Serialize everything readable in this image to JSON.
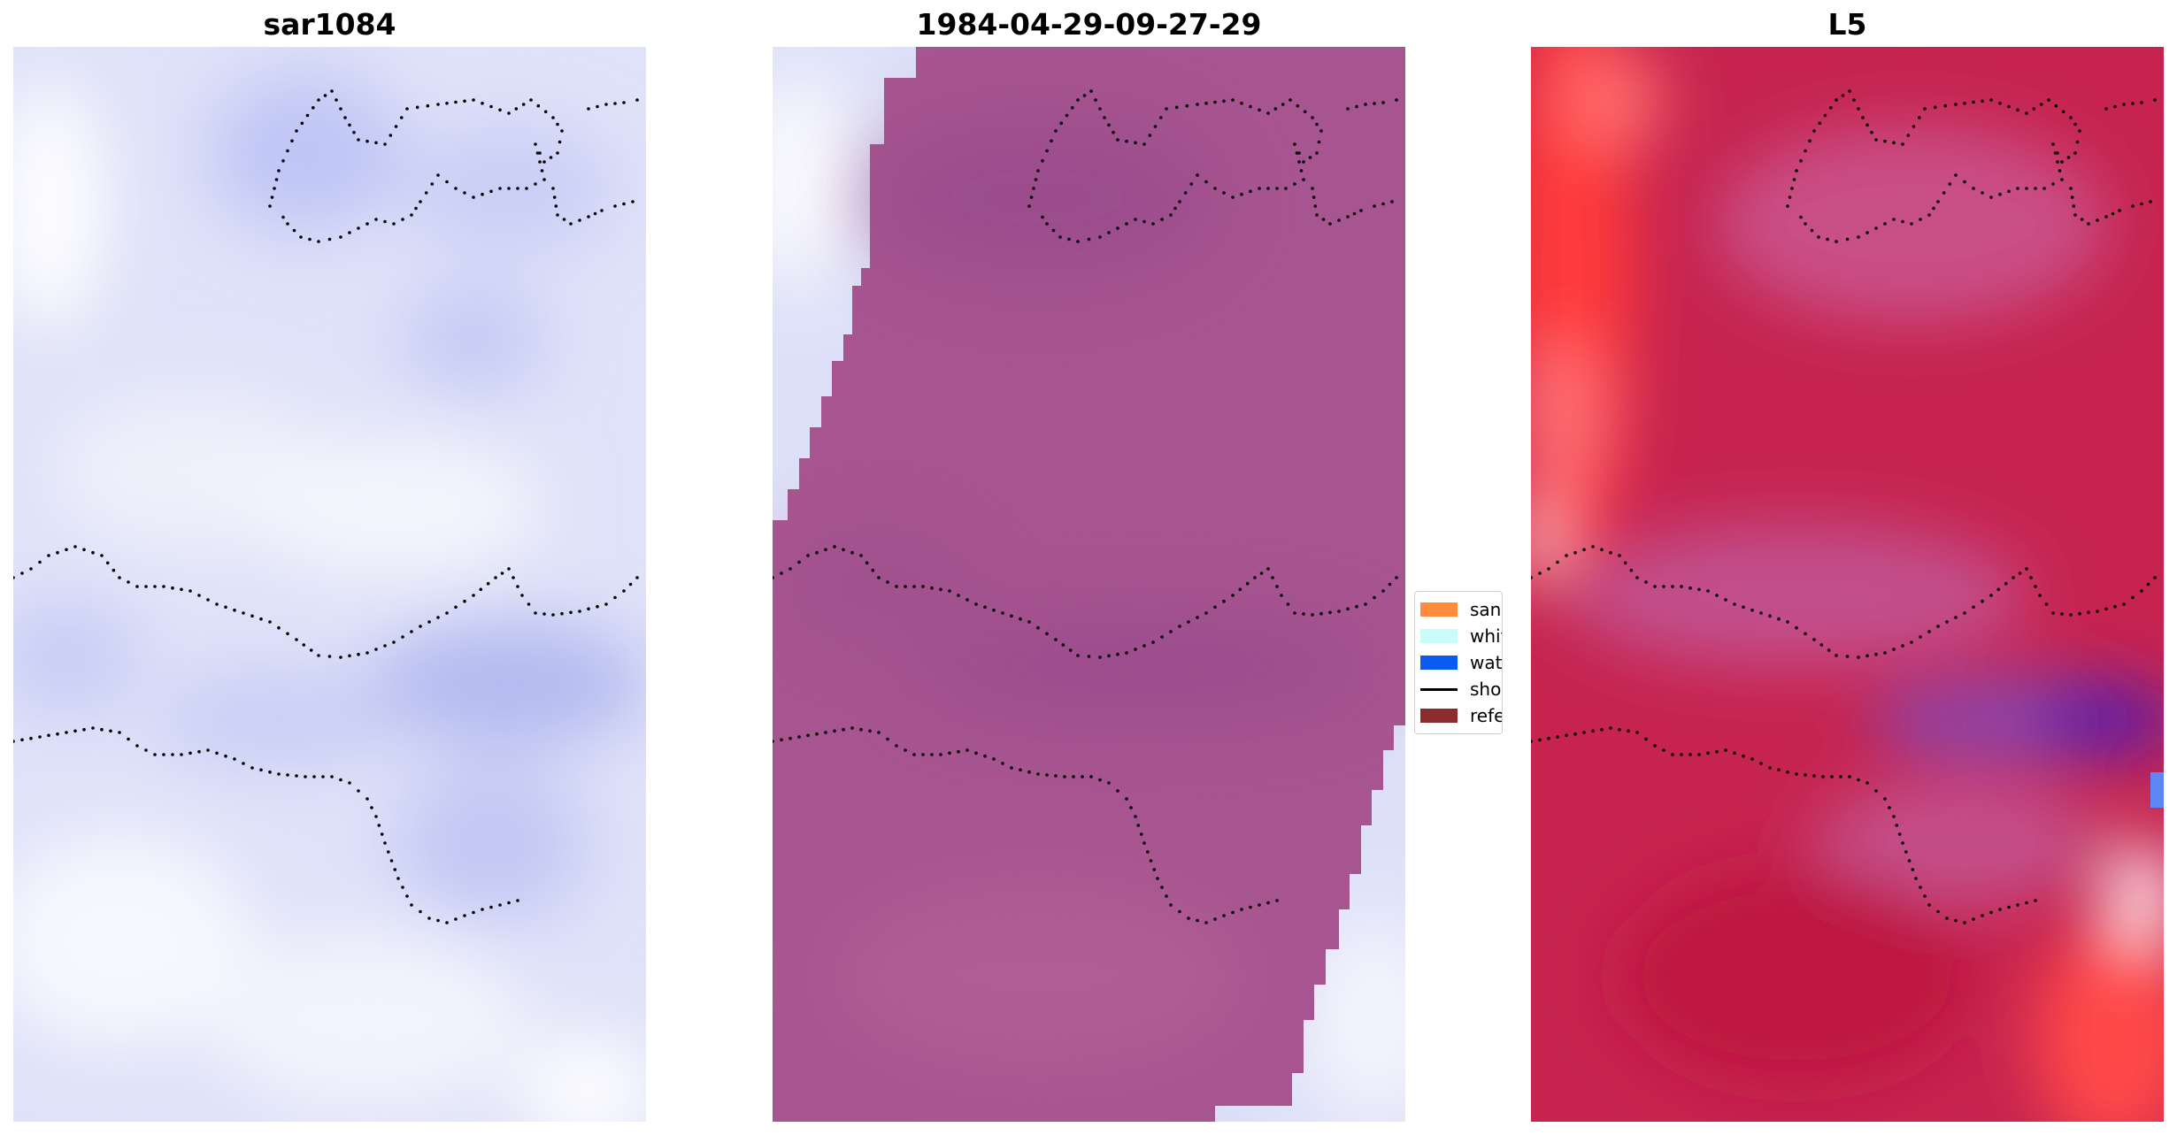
{
  "panels": [
    {
      "title": "sar1084"
    },
    {
      "title": "1984-04-29-09-27-29"
    },
    {
      "title": "L5"
    }
  ],
  "legend": {
    "items": [
      {
        "label": "sand",
        "color": "#ff8c3a"
      },
      {
        "label": "whitew",
        "color": "#c8fdfb"
      },
      {
        "label": "water",
        "color": "#0a5cf0"
      },
      {
        "label": "shorel",
        "color": "#000000"
      },
      {
        "label": "referer",
        "color": "#8b2b2b"
      }
    ]
  },
  "colors": {
    "sar_base": "#dde0f8",
    "classified_fill": "#a6538f",
    "l5_fill": "#c7224f",
    "shoreline_dots": "#000000"
  }
}
